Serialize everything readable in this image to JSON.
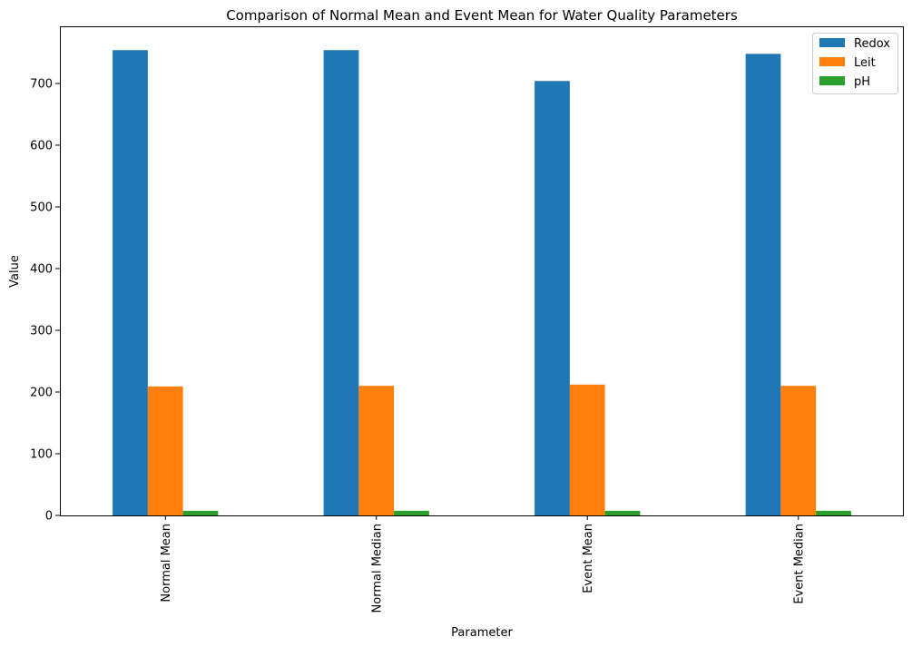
{
  "chart_data": {
    "type": "bar",
    "title": "Comparison of Normal Mean and Event Mean for Water Quality Parameters",
    "xlabel": "Parameter",
    "ylabel": "Value",
    "categories": [
      "Normal Mean",
      "Normal Median",
      "Event Mean",
      "Event Median"
    ],
    "series": [
      {
        "name": "Redox",
        "color": "#1f77b4",
        "values": [
          754,
          754,
          704,
          748
        ]
      },
      {
        "name": "Leit",
        "color": "#ff7f0e",
        "values": [
          209,
          210,
          212,
          210
        ]
      },
      {
        "name": "pH",
        "color": "#2ca02c",
        "values": [
          7.5,
          7.5,
          7.5,
          7.5
        ]
      }
    ],
    "ylim": [
      0,
      792.6
    ],
    "yticks": [
      0,
      100,
      200,
      300,
      400,
      500,
      600,
      700
    ],
    "grid": false,
    "legend_position": "top-right"
  }
}
